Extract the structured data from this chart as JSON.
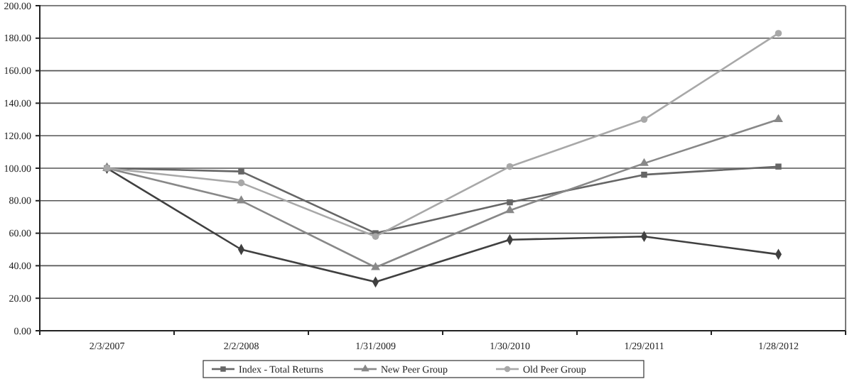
{
  "chart_data": {
    "type": "line",
    "categories": [
      "2/3/2007",
      "2/2/2008",
      "1/31/2009",
      "1/30/2010",
      "1/29/2011",
      "1/28/2012"
    ],
    "series": [
      {
        "color": "#404040",
        "marker": "diamond",
        "values": [
          100,
          50,
          30,
          56,
          58,
          47
        ]
      },
      {
        "name": "Index - Total Returns",
        "color": "#666666",
        "marker": "square",
        "values": [
          100,
          98,
          60,
          79,
          96,
          101
        ]
      },
      {
        "name": "New Peer Group",
        "color": "#888888",
        "marker": "triangle",
        "values": [
          100,
          80,
          39,
          74,
          103,
          130
        ]
      },
      {
        "name": "Old Peer Group",
        "color": "#a8a8a8",
        "marker": "circle",
        "values": [
          100,
          91,
          58,
          101,
          130,
          183
        ]
      }
    ],
    "ylim": [
      0,
      200
    ],
    "yticks": [
      {
        "value": 0,
        "label": "0.00"
      },
      {
        "value": 20,
        "label": "20.00"
      },
      {
        "value": 40,
        "label": "40.00"
      },
      {
        "value": 60,
        "label": "60.00"
      },
      {
        "value": 80,
        "label": "80.00"
      },
      {
        "value": 100,
        "label": "100.00"
      },
      {
        "value": 120,
        "label": "120.00"
      },
      {
        "value": 140,
        "label": "140.00"
      },
      {
        "value": 160,
        "label": "160.00"
      },
      {
        "value": 180,
        "label": "180.00"
      },
      {
        "value": 200,
        "label": "200.00"
      }
    ],
    "grid": "y",
    "legend": "bottom"
  }
}
